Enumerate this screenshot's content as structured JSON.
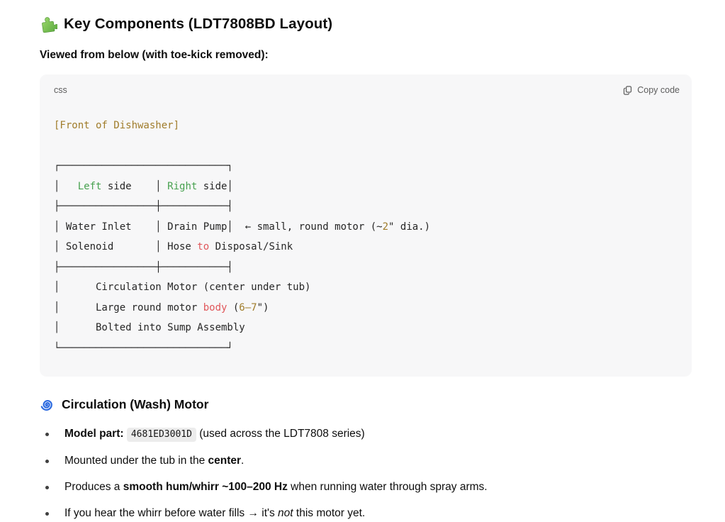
{
  "header": {
    "title": "Key Components (LDT7808BD Layout)",
    "title_icon": "puzzle-piece-emoji",
    "subtitle": "Viewed from below (with toe-kick removed):"
  },
  "code_block": {
    "language_label": "css",
    "copy_button_label": "Copy code",
    "copy_icon": "copy-icon",
    "lines": [
      {
        "segments": [
          {
            "t": "[Front of Dishwasher]",
            "c": "amber"
          }
        ]
      },
      {
        "segments": []
      },
      {
        "segments": [
          {
            "t": "┌────────────────────────────┐",
            "c": "p"
          }
        ]
      },
      {
        "segments": [
          {
            "t": "│   ",
            "c": "p"
          },
          {
            "t": "Left",
            "c": "green"
          },
          {
            "t": " side    │ ",
            "c": "p"
          },
          {
            "t": "Right",
            "c": "green"
          },
          {
            "t": " side│",
            "c": "p"
          }
        ]
      },
      {
        "segments": [
          {
            "t": "├────────────────┼───────────┤",
            "c": "p"
          }
        ]
      },
      {
        "segments": [
          {
            "t": "│ Water Inlet    │ Drain Pump│  ← small, round motor (~",
            "c": "p"
          },
          {
            "t": "2",
            "c": "amber"
          },
          {
            "t": "\" dia.)",
            "c": "p"
          }
        ]
      },
      {
        "segments": [
          {
            "t": "│ Solenoid       │ Hose ",
            "c": "p"
          },
          {
            "t": "to",
            "c": "red"
          },
          {
            "t": " Disposal/Sink",
            "c": "p"
          }
        ]
      },
      {
        "segments": [
          {
            "t": "├────────────────┼───────────┤",
            "c": "p"
          }
        ]
      },
      {
        "segments": [
          {
            "t": "│      Circulation Motor (center under tub)",
            "c": "p"
          }
        ]
      },
      {
        "segments": [
          {
            "t": "│      Large round motor ",
            "c": "p"
          },
          {
            "t": "body",
            "c": "red"
          },
          {
            "t": " (",
            "c": "p"
          },
          {
            "t": "6–7",
            "c": "amber"
          },
          {
            "t": "\")",
            "c": "p"
          }
        ]
      },
      {
        "segments": [
          {
            "t": "│      Bolted into Sump Assembly",
            "c": "p"
          }
        ]
      },
      {
        "segments": [
          {
            "t": "└────────────────────────────┘",
            "c": "p"
          }
        ]
      }
    ]
  },
  "section": {
    "title": "Circulation (Wash) Motor",
    "title_icon": "cyclone-emoji"
  },
  "bullets": [
    [
      {
        "t": "Model part:",
        "s": "b"
      },
      {
        "t": " ",
        "s": ""
      },
      {
        "t": "4681ED3001D",
        "s": "code"
      },
      {
        "t": " (used across the LDT7808 series)",
        "s": ""
      }
    ],
    [
      {
        "t": "Mounted under the tub in the ",
        "s": ""
      },
      {
        "t": "center",
        "s": "b"
      },
      {
        "t": ".",
        "s": ""
      }
    ],
    [
      {
        "t": "Produces a ",
        "s": ""
      },
      {
        "t": "smooth hum/whirr ~100–200 Hz",
        "s": "b"
      },
      {
        "t": " when running water through spray arms.",
        "s": ""
      }
    ],
    [
      {
        "t": "If you hear the whirr before water fills → it's ",
        "s": ""
      },
      {
        "t": "not",
        "s": "i"
      },
      {
        "t": " this motor yet.",
        "s": ""
      }
    ]
  ],
  "colors": {
    "code_block_bg": "#f7f7f8",
    "code_text": "#262626",
    "code_amber": "#a07c2a",
    "code_green": "#47a14f",
    "code_red": "#e0575b",
    "muted_gray": "#5d5d5d",
    "inline_code_bg": "#ececec",
    "emoji_green": "#6cb645",
    "emoji_blue": "#2d6be0"
  }
}
